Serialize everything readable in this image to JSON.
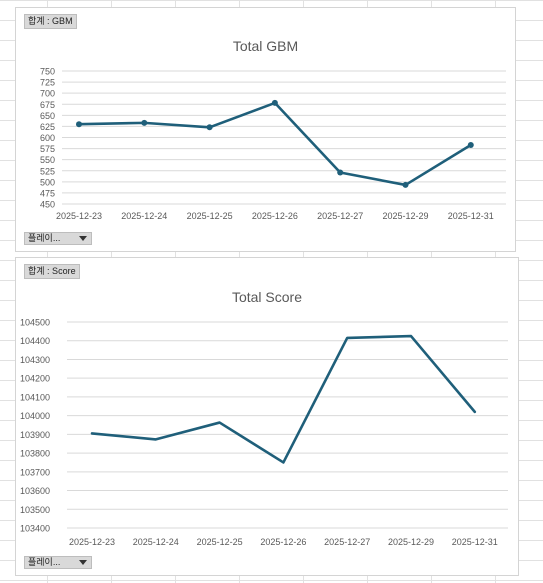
{
  "chart_data": [
    {
      "type": "line",
      "field_tag": "합계 : GBM",
      "title": "Total GBM",
      "categories": [
        "2025-12-23",
        "2025-12-24",
        "2025-12-25",
        "2025-12-26",
        "2025-12-27",
        "2025-12-29",
        "2025-12-31"
      ],
      "series": [
        {
          "values": [
            630,
            633,
            623,
            678,
            521,
            493,
            583
          ]
        }
      ],
      "y_ticks": [
        "450",
        "475",
        "500",
        "525",
        "550",
        "575",
        "600",
        "625",
        "650",
        "675",
        "700",
        "725",
        "750"
      ],
      "ylim": [
        450,
        750
      ],
      "markers": true,
      "grid": true,
      "line_color": "#1f5f7a",
      "filter_label": "플레이..."
    },
    {
      "type": "line",
      "field_tag": "합계 : Score",
      "title": "Total Score",
      "categories": [
        "2025-12-23",
        "2025-12-24",
        "2025-12-25",
        "2025-12-26",
        "2025-12-27",
        "2025-12-29",
        "2025-12-31"
      ],
      "series": [
        {
          "values": [
            103905,
            103873,
            103963,
            103750,
            104415,
            104425,
            104020
          ]
        }
      ],
      "y_ticks": [
        "103400",
        "103500",
        "103600",
        "103700",
        "103800",
        "103900",
        "104000",
        "104100",
        "104200",
        "104300",
        "104400",
        "104500"
      ],
      "ylim": [
        103400,
        104500
      ],
      "markers": false,
      "grid": true,
      "line_color": "#1f5f7a",
      "filter_label": "플레이..."
    }
  ]
}
